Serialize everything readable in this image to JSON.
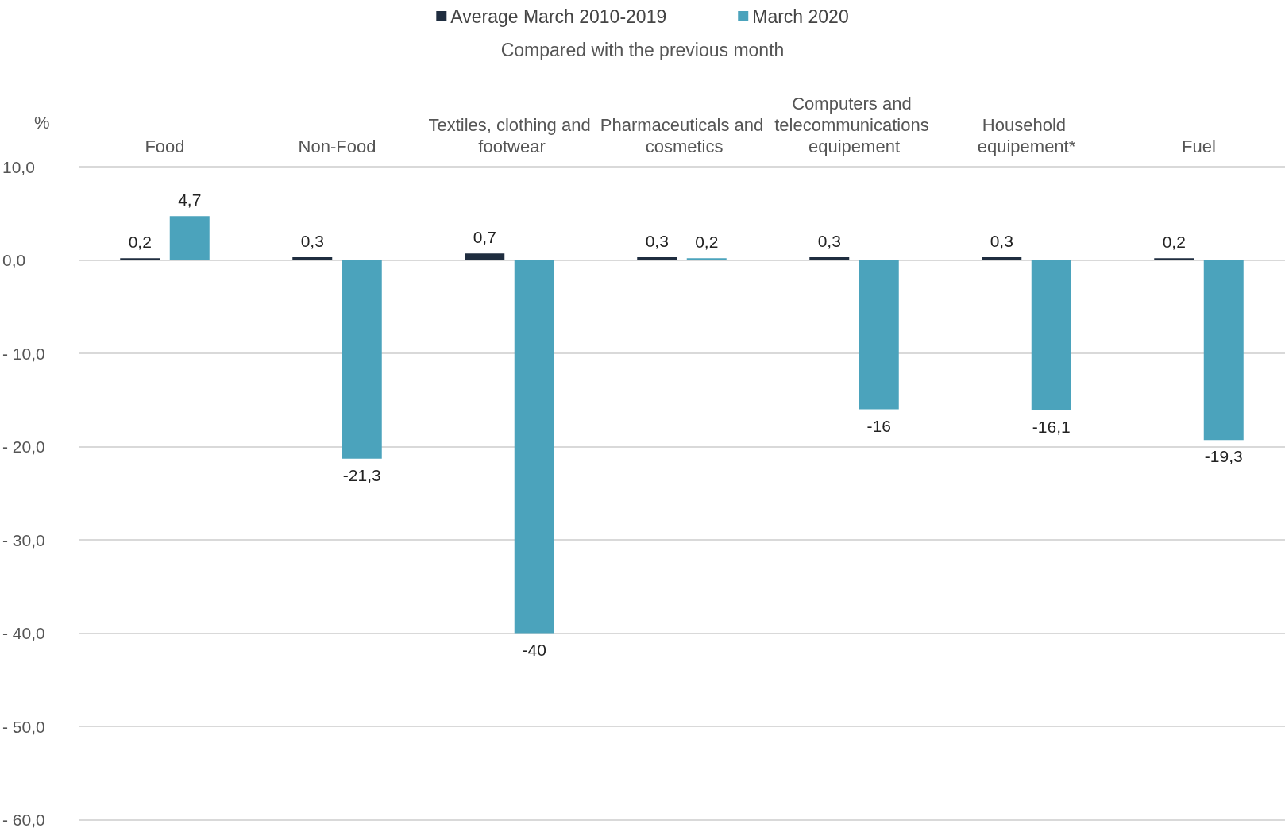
{
  "chart_data": {
    "type": "bar",
    "subtitle": "Compared with the previous month",
    "ylabel": "%",
    "categories": [
      "Food",
      "Non-Food",
      "Textiles, clothing and footwear",
      "Pharmaceuticals and cosmetics",
      "Computers and telecommunications equipement",
      "Household equipement*",
      "Fuel"
    ],
    "series": [
      {
        "name": "Average March 2010-2019",
        "color": "#1f2d3f",
        "values": [
          0.2,
          0.3,
          0.7,
          0.3,
          0.3,
          0.3,
          0.2
        ],
        "value_labels": [
          "0,2",
          "0,3",
          "0,7",
          "0,3",
          "0,3",
          "0,3",
          "0,2"
        ]
      },
      {
        "name": "March 2020",
        "color": "#4ba3bc",
        "values": [
          4.7,
          -21.3,
          -40,
          0.2,
          -16,
          -16.1,
          -19.3
        ],
        "value_labels": [
          "4,7",
          "-21,3",
          "-40",
          "0,2",
          "-16",
          "-16,1",
          "-19,3"
        ]
      }
    ],
    "ylim": [
      -60,
      10
    ],
    "yticks": [
      {
        "value": 10,
        "label": "10,0"
      },
      {
        "value": 0,
        "label": "0,0"
      },
      {
        "value": -10,
        "label": "- 10,0"
      },
      {
        "value": -20,
        "label": "- 20,0"
      },
      {
        "value": -30,
        "label": "- 30,0"
      },
      {
        "value": -40,
        "label": "- 40,0"
      },
      {
        "value": -50,
        "label": "- 50,0"
      },
      {
        "value": -60,
        "label": "- 60,0"
      }
    ],
    "grid": "y",
    "legend": "top"
  }
}
